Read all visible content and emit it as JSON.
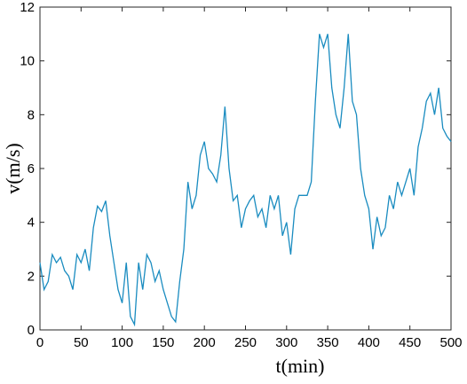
{
  "chart_data": {
    "type": "line",
    "xlabel": "t(min)",
    "ylabel": "v(m/s)",
    "x": [
      0,
      5,
      10,
      15,
      20,
      25,
      30,
      35,
      40,
      45,
      50,
      55,
      60,
      65,
      70,
      75,
      80,
      85,
      90,
      95,
      100,
      105,
      110,
      115,
      120,
      125,
      130,
      135,
      140,
      145,
      150,
      155,
      160,
      165,
      170,
      175,
      180,
      185,
      190,
      195,
      200,
      205,
      210,
      215,
      220,
      225,
      230,
      235,
      240,
      245,
      250,
      255,
      260,
      265,
      270,
      275,
      280,
      285,
      290,
      295,
      300,
      305,
      310,
      315,
      320,
      325,
      330,
      335,
      340,
      345,
      350,
      355,
      360,
      365,
      370,
      375,
      380,
      385,
      390,
      395,
      400,
      405,
      410,
      415,
      420,
      425,
      430,
      435,
      440,
      445,
      450,
      455,
      460,
      465,
      470,
      475,
      480,
      485,
      490,
      495,
      500
    ],
    "series": [
      {
        "name": "v",
        "color": "#1a8cc0",
        "values": [
          2.5,
          1.5,
          1.8,
          2.8,
          2.5,
          2.7,
          2.2,
          2.0,
          1.5,
          2.8,
          2.5,
          3.0,
          2.2,
          3.8,
          4.6,
          4.4,
          4.8,
          3.5,
          2.5,
          1.5,
          1.0,
          2.5,
          0.5,
          0.2,
          2.5,
          1.5,
          2.8,
          2.5,
          1.8,
          2.2,
          1.5,
          1.0,
          0.5,
          0.3,
          1.8,
          3.0,
          5.5,
          4.5,
          5.0,
          6.5,
          7.0,
          6.0,
          5.8,
          5.5,
          6.5,
          8.3,
          6.0,
          4.8,
          5.0,
          3.8,
          4.5,
          4.8,
          5.0,
          4.2,
          4.5,
          3.8,
          5.0,
          4.5,
          5.0,
          3.5,
          4.0,
          2.8,
          4.5,
          5.0,
          5.0,
          5.0,
          5.5,
          8.5,
          11.0,
          10.5,
          11.0,
          9.0,
          8.0,
          7.5,
          9.0,
          11.0,
          8.5,
          8.0,
          6.0,
          5.0,
          4.5,
          3.0,
          4.2,
          3.5,
          3.8,
          5.0,
          4.5,
          5.5,
          5.0,
          5.5,
          6.0,
          5.0,
          6.8,
          7.5,
          8.5,
          8.8,
          8.0,
          9.0,
          7.5,
          7.2,
          7.0
        ]
      }
    ],
    "xlim": [
      0,
      500
    ],
    "ylim": [
      0,
      12
    ],
    "xticks": [
      0,
      50,
      100,
      150,
      200,
      250,
      300,
      350,
      400,
      450,
      500
    ],
    "yticks": [
      0,
      2,
      4,
      6,
      8,
      10,
      12
    ]
  }
}
